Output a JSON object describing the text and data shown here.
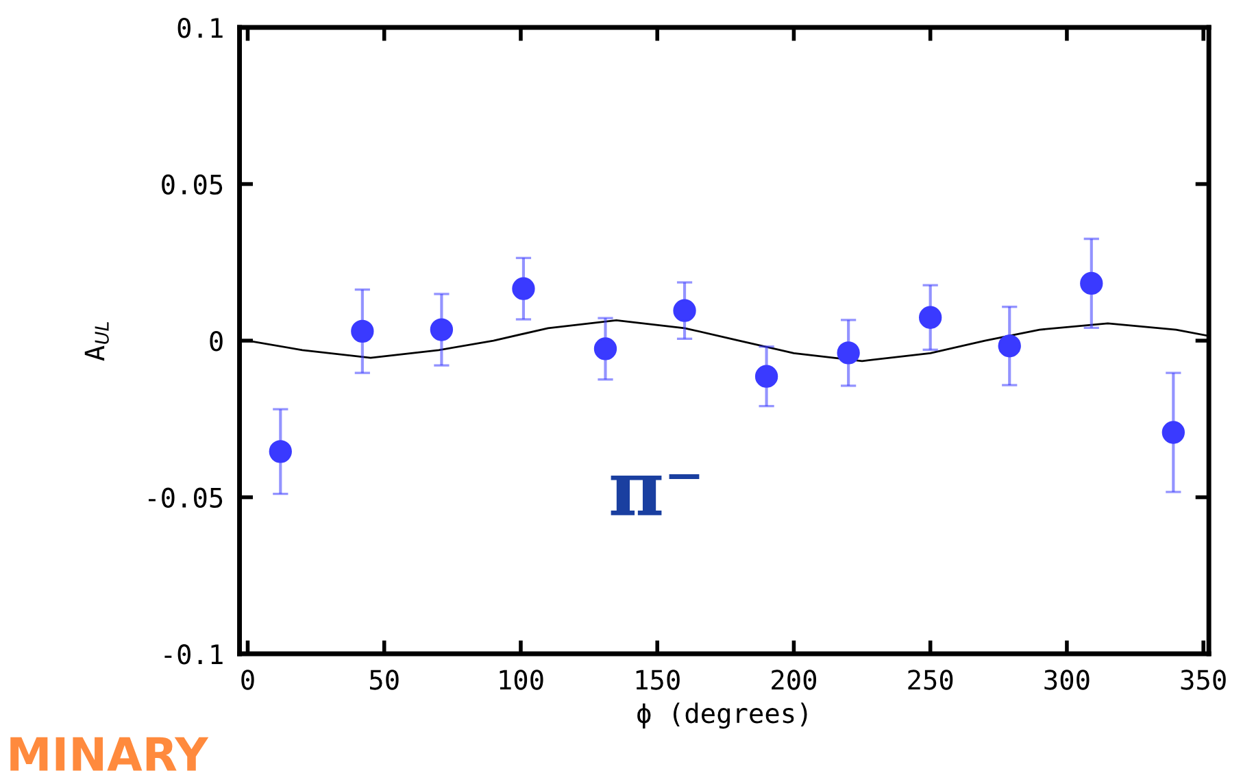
{
  "chart_data": {
    "type": "scatter",
    "xlabel": "ϕ (degrees)",
    "ylabel": "A$_{UL}$",
    "xlim": [
      -3,
      352
    ],
    "xticks": [
      0,
      50,
      100,
      150,
      200,
      250,
      300,
      350
    ],
    "ylim": [
      -0.1,
      0.1
    ],
    "yticks": [
      -0.1,
      -0.05,
      0,
      0.05,
      0.1
    ],
    "grid": false,
    "marker": "circle",
    "annotations": [
      "π⁻",
      "MINARY"
    ],
    "series": [
      {
        "color": "#3a3aff",
        "x": [
          12,
          42,
          71,
          101,
          131,
          160,
          190,
          220,
          250,
          279,
          309,
          339
        ],
        "values": [
          -0.0354,
          0.003,
          0.0035,
          0.0166,
          -0.0026,
          0.0096,
          -0.0114,
          -0.0039,
          0.0074,
          -0.0017,
          0.0183,
          -0.0293
        ],
        "errors": [
          0.0135,
          0.0133,
          0.0114,
          0.0098,
          0.0098,
          0.009,
          0.0095,
          0.0105,
          0.0103,
          0.0125,
          0.0142,
          0.019
        ]
      },
      {
        "type": "line",
        "color": "#000000",
        "marker": "none",
        "line_style": "solid",
        "x": [
          0,
          20,
          45,
          70,
          90,
          110,
          135,
          160,
          180,
          200,
          225,
          250,
          270,
          290,
          315,
          340,
          352
        ],
        "values": [
          0,
          -0.003,
          -0.0055,
          -0.003,
          0,
          0.004,
          0.0065,
          0.004,
          0,
          -0.004,
          -0.0065,
          -0.004,
          0,
          0.0035,
          0.0055,
          0.0035,
          0.0015
        ]
      }
    ]
  }
}
